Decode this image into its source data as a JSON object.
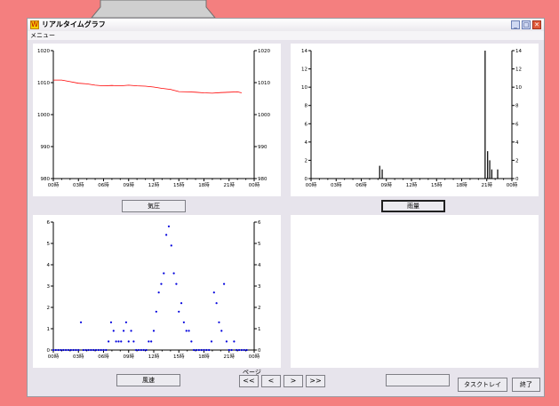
{
  "window": {
    "title": "リアルタイムグラフ",
    "menu": "メニュー",
    "buttons": [
      "_",
      "□",
      "✕"
    ]
  },
  "panels": {
    "pressure_button": "気圧",
    "rain_button": "雨量",
    "wind_button": "風速",
    "empty_button": "",
    "tray_button": "タスクトレイ",
    "exit_button": "終了"
  },
  "pager": {
    "label": "ページ",
    "buttons": [
      "<<",
      "<",
      ">",
      ">>"
    ]
  },
  "chart_data": [
    {
      "type": "line",
      "name": "pressure",
      "color": "#ff0000",
      "x_ticks": [
        "00時",
        "03時",
        "06時",
        "09時",
        "12時",
        "15時",
        "18時",
        "21時",
        "00時"
      ],
      "ylim": [
        980,
        1020
      ],
      "y_ticks": [
        980,
        990,
        1000,
        1010,
        1020
      ],
      "x_range": [
        0,
        24
      ],
      "points": [
        [
          0,
          1010.8
        ],
        [
          1,
          1010.8
        ],
        [
          2,
          1010.3
        ],
        [
          3,
          1009.8
        ],
        [
          4,
          1009.6
        ],
        [
          5,
          1009.2
        ],
        [
          6,
          1009.0
        ],
        [
          7,
          1009.1
        ],
        [
          8,
          1009.0
        ],
        [
          9,
          1009.2
        ],
        [
          10,
          1009.0
        ],
        [
          11,
          1008.9
        ],
        [
          12,
          1008.6
        ],
        [
          13,
          1008.2
        ],
        [
          14,
          1007.9
        ],
        [
          15,
          1007.2
        ],
        [
          16,
          1007.1
        ],
        [
          17,
          1007.0
        ],
        [
          18,
          1006.8
        ],
        [
          19,
          1006.7
        ],
        [
          20,
          1006.9
        ],
        [
          21,
          1007.0
        ],
        [
          22,
          1007.1
        ],
        [
          22.5,
          1006.8
        ]
      ]
    },
    {
      "type": "bar",
      "name": "rain",
      "color": "#000000",
      "x_ticks": [
        "00時",
        "03時",
        "06時",
        "09時",
        "12時",
        "15時",
        "18時",
        "21時",
        "00時"
      ],
      "ylim": [
        0,
        14
      ],
      "y_ticks": [
        0,
        2,
        4,
        6,
        8,
        10,
        12,
        14
      ],
      "x_range": [
        0,
        24
      ],
      "bars": [
        [
          8.2,
          1.4
        ],
        [
          8.5,
          1.0
        ],
        [
          20.8,
          14.0
        ],
        [
          21.1,
          3.0
        ],
        [
          21.35,
          2.0
        ],
        [
          21.6,
          1.0
        ],
        [
          22.3,
          1.0
        ]
      ]
    },
    {
      "type": "scatter",
      "name": "wind",
      "color": "#0000dd",
      "x_ticks": [
        "00時",
        "03時",
        "06時",
        "09時",
        "12時",
        "15時",
        "18時",
        "21時",
        "00時"
      ],
      "ylim": [
        0,
        6
      ],
      "y_ticks": [
        0,
        1,
        2,
        3,
        4,
        5,
        6
      ],
      "x_range": [
        0,
        24
      ],
      "points": [
        [
          0,
          0
        ],
        [
          0.3,
          0
        ],
        [
          0.6,
          0
        ],
        [
          0.9,
          0
        ],
        [
          1.2,
          0
        ],
        [
          1.5,
          0
        ],
        [
          1.8,
          0
        ],
        [
          2.1,
          0
        ],
        [
          2.4,
          0
        ],
        [
          2.7,
          0
        ],
        [
          3.0,
          0
        ],
        [
          3.3,
          1.3
        ],
        [
          3.6,
          0
        ],
        [
          3.9,
          0
        ],
        [
          4.2,
          0
        ],
        [
          4.5,
          0
        ],
        [
          4.8,
          0
        ],
        [
          5.1,
          0
        ],
        [
          5.4,
          0
        ],
        [
          5.7,
          0
        ],
        [
          6.0,
          0
        ],
        [
          6.3,
          0
        ],
        [
          6.6,
          0.4
        ],
        [
          6.9,
          1.3
        ],
        [
          7.2,
          0.9
        ],
        [
          7.5,
          0.4
        ],
        [
          7.8,
          0.4
        ],
        [
          8.1,
          0.4
        ],
        [
          8.4,
          0.9
        ],
        [
          8.7,
          1.3
        ],
        [
          9.0,
          0.4
        ],
        [
          9.3,
          0.9
        ],
        [
          9.6,
          0.4
        ],
        [
          9.9,
          0
        ],
        [
          10.2,
          0
        ],
        [
          10.5,
          0
        ],
        [
          10.8,
          0
        ],
        [
          11.1,
          0
        ],
        [
          11.4,
          0.4
        ],
        [
          11.7,
          0.4
        ],
        [
          12.0,
          0.9
        ],
        [
          12.3,
          1.8
        ],
        [
          12.6,
          2.7
        ],
        [
          12.9,
          3.1
        ],
        [
          13.2,
          3.6
        ],
        [
          13.5,
          5.4
        ],
        [
          13.8,
          5.8
        ],
        [
          14.1,
          4.9
        ],
        [
          14.4,
          3.6
        ],
        [
          14.7,
          3.1
        ],
        [
          15.0,
          1.8
        ],
        [
          15.3,
          2.2
        ],
        [
          15.6,
          1.3
        ],
        [
          15.9,
          0.9
        ],
        [
          16.2,
          0.9
        ],
        [
          16.5,
          0.4
        ],
        [
          16.8,
          0
        ],
        [
          17.1,
          0
        ],
        [
          17.4,
          0
        ],
        [
          17.7,
          0
        ],
        [
          18.0,
          0
        ],
        [
          18.3,
          0
        ],
        [
          18.6,
          0
        ],
        [
          18.9,
          0.4
        ],
        [
          19.2,
          2.7
        ],
        [
          19.5,
          2.2
        ],
        [
          19.8,
          1.3
        ],
        [
          20.1,
          0.9
        ],
        [
          20.4,
          3.1
        ],
        [
          20.7,
          0.4
        ],
        [
          21.0,
          0
        ],
        [
          21.3,
          0
        ],
        [
          21.6,
          0.4
        ],
        [
          21.9,
          0
        ],
        [
          22.2,
          0
        ],
        [
          22.5,
          0
        ],
        [
          22.8,
          0
        ],
        [
          23.1,
          0
        ]
      ]
    }
  ]
}
